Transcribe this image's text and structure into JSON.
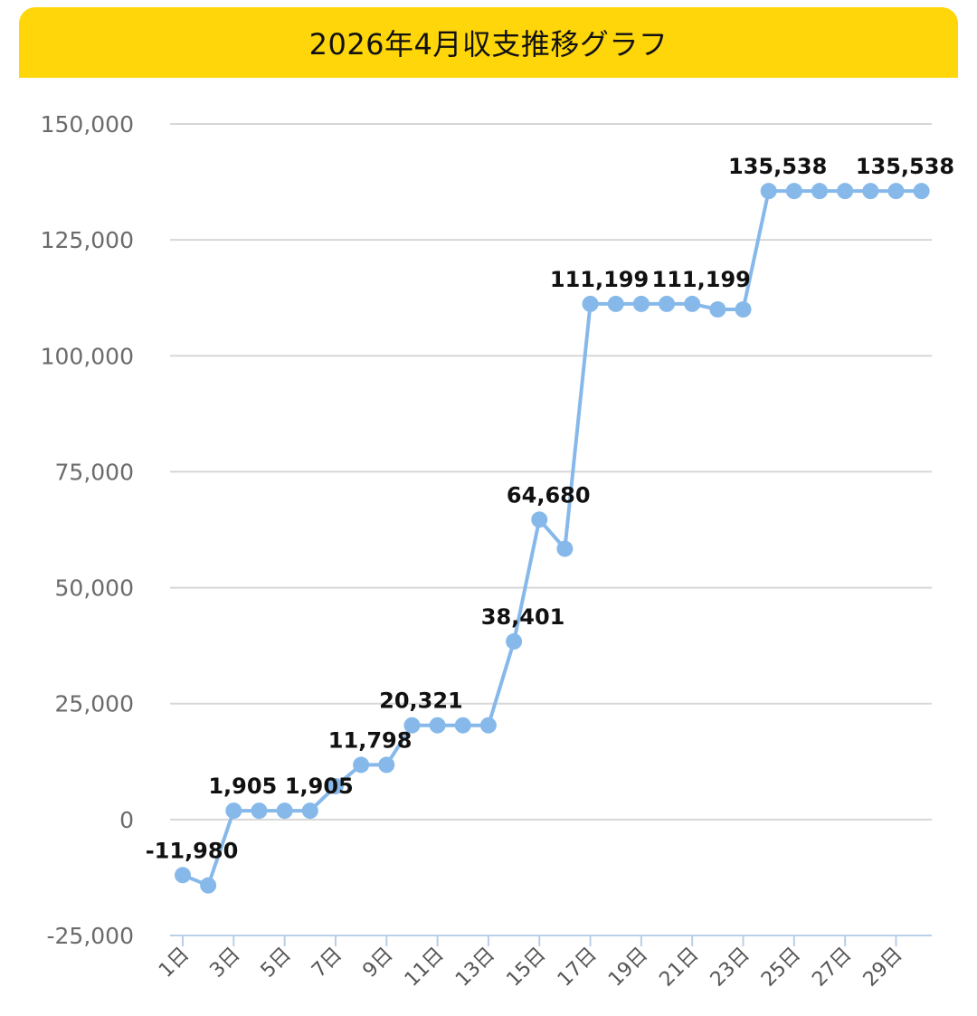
{
  "header": {
    "title": "2026年4月収支推移グラフ",
    "background_color": "#FFD60A"
  },
  "chart_data": {
    "type": "line",
    "title": "2026年4月収支推移グラフ",
    "xlabel": "",
    "ylabel": "",
    "x": [
      1,
      2,
      3,
      4,
      5,
      6,
      7,
      8,
      9,
      10,
      11,
      12,
      13,
      14,
      15,
      16,
      17,
      18,
      19,
      20,
      21,
      22,
      23,
      24,
      25,
      26,
      27,
      28,
      29,
      30
    ],
    "x_tick_labels": [
      "1日",
      "3日",
      "5日",
      "7日",
      "9日",
      "11日",
      "13日",
      "15日",
      "17日",
      "19日",
      "21日",
      "23日",
      "25日",
      "27日",
      "29日"
    ],
    "x_tick_values": [
      1,
      3,
      5,
      7,
      9,
      11,
      13,
      15,
      17,
      19,
      21,
      23,
      25,
      27,
      29
    ],
    "y_tick_labels": [
      "150,000",
      "125,000",
      "100,000",
      "75,000",
      "50,000",
      "25,000",
      "0",
      "-25,000"
    ],
    "y_tick_values": [
      150000,
      125000,
      100000,
      75000,
      50000,
      25000,
      0,
      -25000
    ],
    "ylim": [
      -25000,
      150000
    ],
    "grid": true,
    "series": [
      {
        "color": "#86B9EA",
        "values": [
          -11980,
          -14200,
          1905,
          1905,
          1905,
          1905,
          7200,
          11798,
          11798,
          20321,
          20321,
          20321,
          20321,
          38401,
          64680,
          58400,
          111199,
          111199,
          111199,
          111199,
          111199,
          110000,
          110000,
          135538,
          135538,
          135538,
          135538,
          135538,
          135538,
          135538
        ]
      }
    ],
    "data_labels": [
      {
        "x": 1,
        "text": "-11,980"
      },
      {
        "x": 3,
        "text": "1,905"
      },
      {
        "x": 6,
        "text": "1,905"
      },
      {
        "x": 8,
        "text": "11,798"
      },
      {
        "x": 10,
        "text": "20,321"
      },
      {
        "x": 14,
        "text": "38,401"
      },
      {
        "x": 15,
        "text": "64,680"
      },
      {
        "x": 17,
        "text": "111,199"
      },
      {
        "x": 21,
        "text": "111,199"
      },
      {
        "x": 24,
        "text": "135,538"
      },
      {
        "x": 29,
        "text": "135,538"
      }
    ]
  }
}
